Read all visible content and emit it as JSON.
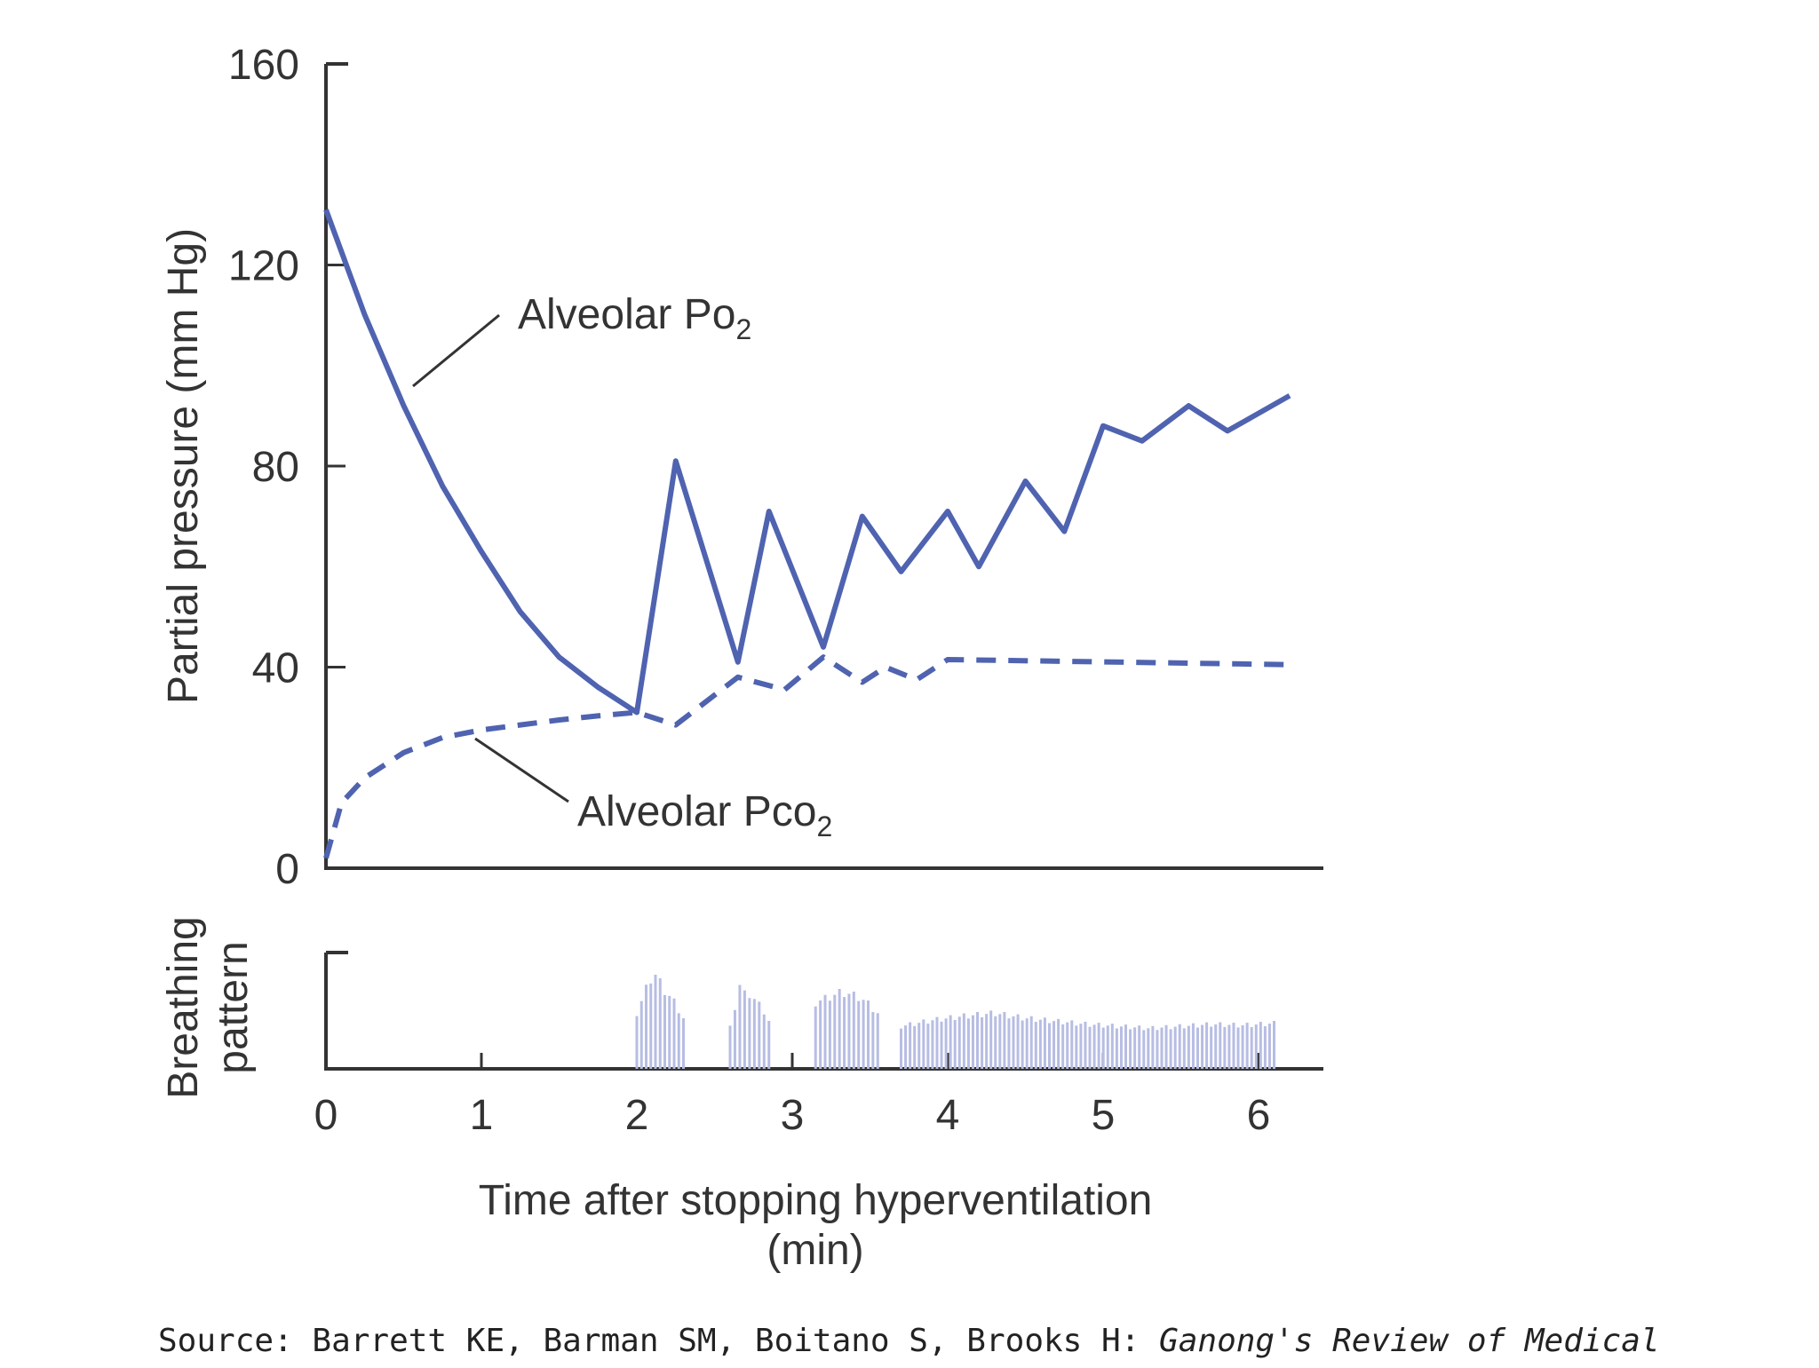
{
  "chart_data": {
    "type": "line",
    "ylabel": "Partial pressure (mm Hg)",
    "xlabel": "Time after stopping hyperventilation",
    "xlabel_unit": "(min)",
    "xlim": [
      0,
      6.4
    ],
    "ylim": [
      0,
      160
    ],
    "y_ticks": [
      "0",
      "40",
      "80",
      "120",
      "160"
    ],
    "x_ticks": [
      "0",
      "1",
      "2",
      "3",
      "4",
      "5",
      "6"
    ],
    "grid": false,
    "series": [
      {
        "name": "Alveolar Po2",
        "label_text": "Alveolar Po",
        "label_sub": "2",
        "style": "solid",
        "color": "#4f63b0",
        "x": [
          0,
          0.25,
          0.5,
          0.75,
          1.0,
          1.25,
          1.5,
          1.75,
          2.0,
          2.25,
          2.65,
          2.85,
          3.2,
          3.45,
          3.7,
          4.0,
          4.2,
          4.5,
          4.75,
          5.0,
          5.25,
          5.55,
          5.8,
          6.2
        ],
        "y": [
          131,
          110,
          92,
          76,
          63,
          51,
          42,
          36,
          31,
          81,
          41,
          71,
          44,
          70,
          59,
          71,
          60,
          77,
          67,
          88,
          85,
          92,
          87,
          94
        ]
      },
      {
        "name": "Alveolar Pco2",
        "label_text": "Alveolar Pco",
        "label_sub": "2",
        "style": "dashed",
        "color": "#4f63b0",
        "x": [
          0,
          0.1,
          0.25,
          0.5,
          0.75,
          1.0,
          1.25,
          1.5,
          1.75,
          2.0,
          2.25,
          2.65,
          2.95,
          3.2,
          3.45,
          3.6,
          3.8,
          4.0,
          6.2
        ],
        "y": [
          2,
          13,
          18,
          23,
          26,
          27.5,
          28.5,
          29.5,
          30.3,
          31,
          28.5,
          38,
          35.5,
          42,
          37,
          40,
          37.5,
          41.5,
          40.5
        ]
      }
    ],
    "breathing_pattern": {
      "ylabel_line1": "Breathing",
      "ylabel_line2": "pattern",
      "color": "#b7bde3",
      "bursts": [
        {
          "start": 2.0,
          "end": 2.3,
          "amps": [
            0.55,
            0.7,
            0.85,
            0.95,
            0.85,
            0.75,
            0.7,
            0.6,
            0.5
          ]
        },
        {
          "start": 2.6,
          "end": 2.85,
          "amps": [
            0.45,
            0.6,
            0.85,
            0.8,
            0.6,
            0.75,
            0.55,
            0.45
          ]
        },
        {
          "start": 3.15,
          "end": 3.55,
          "amps": [
            0.65,
            0.68,
            0.7,
            0.72,
            0.75,
            0.75,
            0.74,
            0.72,
            0.7,
            0.66,
            0.6,
            0.55
          ]
        },
        {
          "start": 3.7,
          "end": 6.1,
          "amps": [
            0.42,
            0.48,
            0.52,
            0.55,
            0.5,
            0.47,
            0.44,
            0.42,
            0.4,
            0.42,
            0.44,
            0.43,
            0.45
          ]
        }
      ]
    }
  },
  "source": {
    "text": "Source: Barrett KE, Barman SM, Boitano S, Brooks H: ",
    "italic_text": "Ganong's Review of Medical"
  }
}
